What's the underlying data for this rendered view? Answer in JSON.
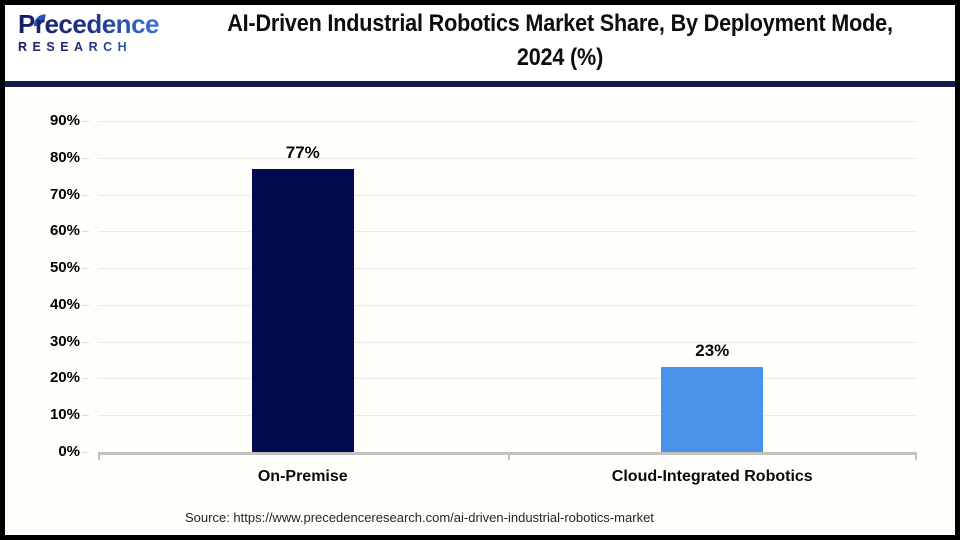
{
  "header": {
    "logo": {
      "name": "Precedence",
      "subtitle": "RESEARCH"
    },
    "title_line1": "AI-Driven Industrial Robotics Market Share, By Deployment Mode,",
    "title_line2": "2024 (%)"
  },
  "chart_data": {
    "type": "bar",
    "title": "AI-Driven Industrial Robotics Market Share, By Deployment Mode, 2024 (%)",
    "categories": [
      "On-Premise",
      "Cloud-Integrated Robotics"
    ],
    "values": [
      77,
      23
    ],
    "value_labels": [
      "77%",
      "23%"
    ],
    "bar_colors": [
      "#040a50",
      "#4a91ea"
    ],
    "xlabel": "",
    "ylabel": "",
    "ylim": [
      0,
      90
    ],
    "ytick_step": 10,
    "ytick_labels": [
      "0%",
      "10%",
      "20%",
      "30%",
      "40%",
      "50%",
      "60%",
      "70%",
      "80%",
      "90%"
    ],
    "grid": true,
    "legend": false
  },
  "footer": {
    "source": "Source: https://www.precedenceresearch.com/ai-driven-industrial-robotics-market"
  },
  "colors": {
    "bar_on_premise": "#040a50",
    "bar_cloud_integrated": "#4a91ea",
    "header_divider": "#111b4d",
    "gridline": "#ebebeb",
    "axis_line": "#c2c2c2",
    "title_text": "#0d0d0d",
    "logo_gradient_start": "#141e63",
    "logo_gradient_end": "#3b7de6",
    "source_text": "#262626",
    "frame_border": "#000000",
    "background": "#ffffff"
  }
}
